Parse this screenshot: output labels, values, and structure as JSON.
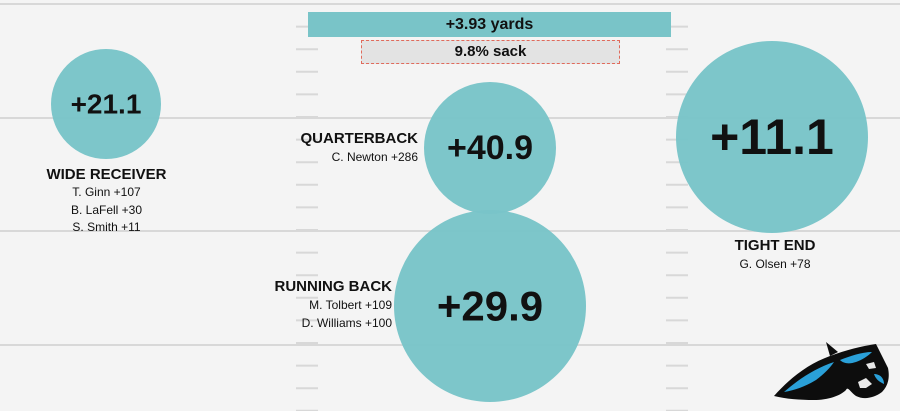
{
  "colors": {
    "bubble": "#79c4c8",
    "background": "#f4f4f4",
    "sack_border": "#e06a5b",
    "field_line": "#d8d8d8"
  },
  "summary": {
    "yards_label": "+3.93 yards",
    "sack_label": "9.8% sack"
  },
  "chart_data": {
    "type": "bubble",
    "title": "",
    "xlabel": "",
    "ylabel": "",
    "grid": false,
    "series": [
      {
        "position": "WIDE RECEIVER",
        "value": 21.1,
        "label": "+21.1",
        "players": [
          "T. Ginn +107",
          "B. LaFell +30",
          "S. Smith +11"
        ]
      },
      {
        "position": "QUARTERBACK",
        "value": 40.9,
        "label": "+40.9",
        "players": [
          "C. Newton +286"
        ]
      },
      {
        "position": "RUNNING BACK",
        "value": 29.9,
        "label": "+29.9",
        "players": [
          "M. Tolbert +109",
          "D. Williams +100"
        ]
      },
      {
        "position": "TIGHT END",
        "value": 11.1,
        "label": "+11.1",
        "players": [
          "G. Olsen +78"
        ]
      }
    ]
  },
  "logo": {
    "icon": "panther-head-icon"
  }
}
